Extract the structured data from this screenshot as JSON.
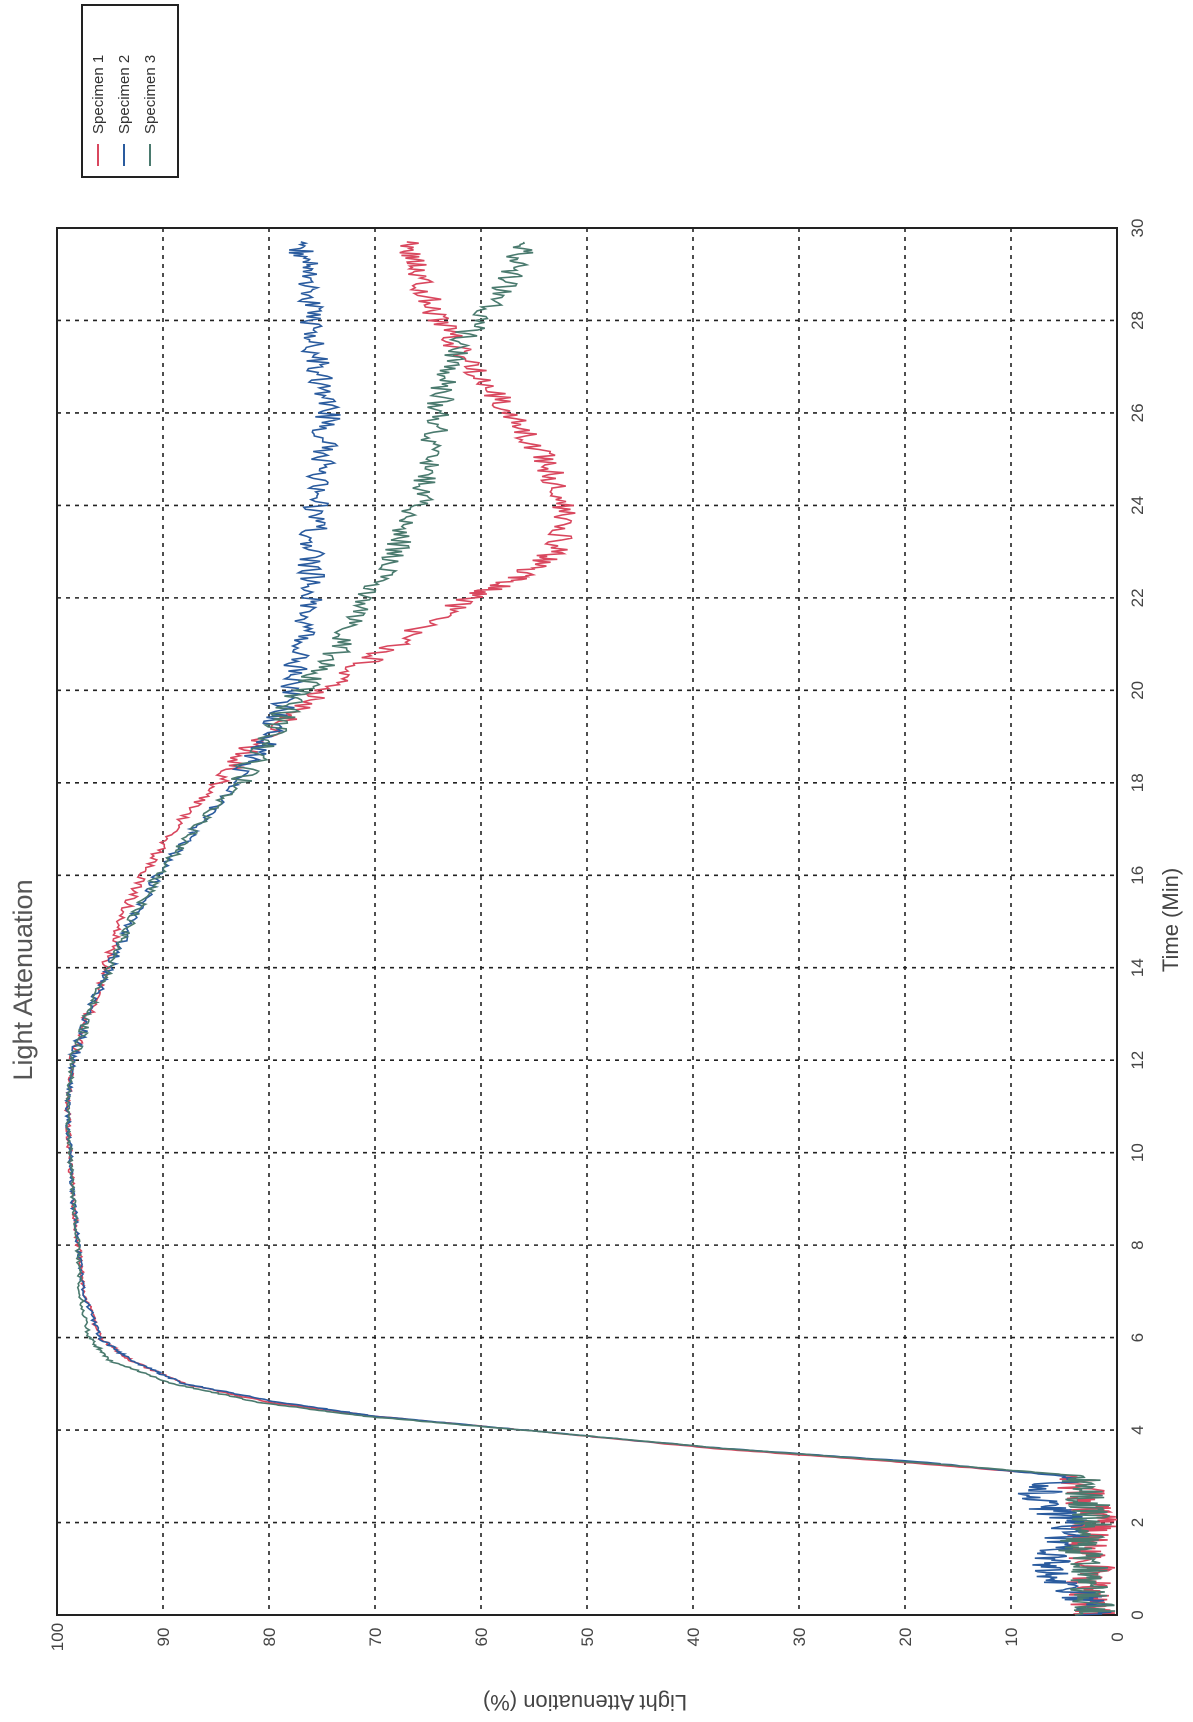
{
  "chart_data": {
    "type": "line",
    "title": "Light Attenuation",
    "xlabel": "Time (Min)",
    "ylabel": "Light Attenuation (%)",
    "xlim": [
      0,
      30
    ],
    "ylim": [
      0,
      100
    ],
    "xticks": [
      0,
      2,
      4,
      6,
      8,
      10,
      12,
      14,
      16,
      18,
      20,
      22,
      24,
      26,
      28,
      30
    ],
    "yticks": [
      0,
      10,
      20,
      30,
      40,
      50,
      60,
      70,
      80,
      90,
      100
    ],
    "grid": true,
    "orientation": "rotated 90 degrees counter-clockwise",
    "legend_position": "top-right",
    "series": [
      {
        "name": "Specimen 1",
        "color": "#d9475e",
        "points": [
          [
            0,
            2
          ],
          [
            0.5,
            3
          ],
          [
            1,
            2
          ],
          [
            1.5,
            3
          ],
          [
            2,
            2
          ],
          [
            2.5,
            3
          ],
          [
            3,
            4
          ],
          [
            3.3,
            20
          ],
          [
            3.6,
            38
          ],
          [
            4,
            56
          ],
          [
            4.3,
            70
          ],
          [
            4.6,
            80
          ],
          [
            5,
            88
          ],
          [
            5.5,
            93
          ],
          [
            6,
            96
          ],
          [
            7,
            97.5
          ],
          [
            8,
            98
          ],
          [
            9,
            98.5
          ],
          [
            10,
            98.8
          ],
          [
            11,
            99
          ],
          [
            12,
            98.5
          ],
          [
            13,
            97
          ],
          [
            14,
            95.5
          ],
          [
            15,
            94
          ],
          [
            16,
            92
          ],
          [
            17,
            89
          ],
          [
            18,
            85
          ],
          [
            19,
            80.5
          ],
          [
            20,
            75
          ],
          [
            21,
            68
          ],
          [
            22,
            61
          ],
          [
            22.5,
            56
          ],
          [
            23,
            53
          ],
          [
            24,
            52
          ],
          [
            25,
            54
          ],
          [
            26,
            57
          ],
          [
            27,
            61
          ],
          [
            28,
            64
          ],
          [
            29,
            66
          ],
          [
            29.7,
            67
          ]
        ]
      },
      {
        "name": "Specimen 2",
        "color": "#2a5b9e",
        "points": [
          [
            0,
            2
          ],
          [
            0.5,
            4
          ],
          [
            1,
            7
          ],
          [
            1.5,
            5
          ],
          [
            2,
            4
          ],
          [
            2.5,
            8
          ],
          [
            3,
            5
          ],
          [
            3.3,
            18
          ],
          [
            3.6,
            37
          ],
          [
            4,
            56
          ],
          [
            4.3,
            70
          ],
          [
            4.6,
            79
          ],
          [
            5,
            88
          ],
          [
            5.5,
            93
          ],
          [
            6,
            96
          ],
          [
            7,
            97.5
          ],
          [
            8,
            98
          ],
          [
            9,
            98.5
          ],
          [
            10,
            98.8
          ],
          [
            11,
            99
          ],
          [
            12,
            98.5
          ],
          [
            13,
            97
          ],
          [
            14,
            95
          ],
          [
            15,
            93
          ],
          [
            16,
            90.5
          ],
          [
            17,
            87
          ],
          [
            18,
            83
          ],
          [
            19,
            80
          ],
          [
            20,
            78
          ],
          [
            21,
            77
          ],
          [
            22,
            76
          ],
          [
            23,
            76
          ],
          [
            24,
            75.5
          ],
          [
            25,
            75
          ],
          [
            26,
            74.5
          ],
          [
            27,
            75.5
          ],
          [
            28,
            76
          ],
          [
            29,
            76.5
          ],
          [
            29.7,
            77
          ]
        ]
      },
      {
        "name": "Specimen 3",
        "color": "#4a7a6e",
        "points": [
          [
            0,
            2
          ],
          [
            0.5,
            3
          ],
          [
            1,
            2
          ],
          [
            1.5,
            4
          ],
          [
            2,
            2
          ],
          [
            2.5,
            3
          ],
          [
            3,
            3
          ],
          [
            3.3,
            19
          ],
          [
            3.6,
            37
          ],
          [
            4,
            56
          ],
          [
            4.3,
            71
          ],
          [
            4.6,
            81
          ],
          [
            5,
            89
          ],
          [
            5.5,
            95
          ],
          [
            6,
            97
          ],
          [
            7,
            97.8
          ],
          [
            8,
            98
          ],
          [
            9,
            98.5
          ],
          [
            10,
            98.8
          ],
          [
            11,
            99
          ],
          [
            12,
            98.5
          ],
          [
            13,
            97
          ],
          [
            14,
            95
          ],
          [
            15,
            93
          ],
          [
            16,
            90.5
          ],
          [
            17,
            87
          ],
          [
            18,
            83
          ],
          [
            19,
            80
          ],
          [
            20,
            77
          ],
          [
            21,
            73
          ],
          [
            22,
            71
          ],
          [
            23,
            68
          ],
          [
            24,
            66
          ],
          [
            25,
            65
          ],
          [
            26,
            64
          ],
          [
            27,
            63
          ],
          [
            28,
            60.5
          ],
          [
            29,
            57
          ],
          [
            29.7,
            56
          ]
        ]
      }
    ]
  }
}
